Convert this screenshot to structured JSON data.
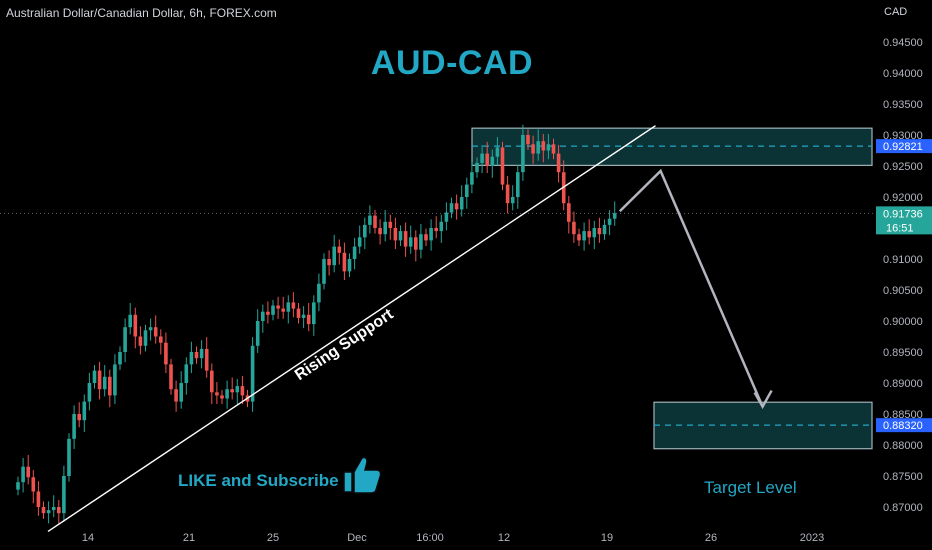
{
  "header": {
    "title": "Australian Dollar/Canadian Dollar, 6h, FOREX.com",
    "currency": "CAD"
  },
  "overlay": {
    "main_title": "AUD-CAD",
    "trendline_label": "Rising Support",
    "like_text": "LIKE and Subscribe",
    "target_text": "Target Level",
    "thumb_icon": "thumbs-up-icon"
  },
  "colors": {
    "up": "#26a69a",
    "down": "#ef5350",
    "accent": "#22a7c4",
    "zone_fill": "#0d3b3e",
    "zone_border": "#9fb3b8",
    "price_tag": "#26a69a",
    "zone_tag": "#2962ff"
  },
  "chart_data": {
    "type": "candlestick",
    "yaxis": {
      "side": "right",
      "range": [
        0.8665,
        0.948
      ],
      "ticks": [
        "0.94500",
        "0.94000",
        "0.93500",
        "0.93000",
        "0.92500",
        "0.92000",
        "0.91500",
        "0.91000",
        "0.90500",
        "0.90000",
        "0.89500",
        "0.89000",
        "0.88500",
        "0.88000",
        "0.87500",
        "0.87000"
      ]
    },
    "xaxis": {
      "ticks": [
        "14",
        "21",
        "25",
        "Dec",
        "16:00",
        "12",
        "19",
        "26",
        "2023"
      ]
    },
    "price_labels": {
      "current": "0.91736",
      "countdown": "16:51",
      "upper_zone": "0.92821",
      "lower_zone": "0.88320"
    },
    "zones": [
      {
        "name": "resistance-zone",
        "top": 0.9311,
        "bottom": 0.9251,
        "level": 0.92821
      },
      {
        "name": "target-zone",
        "top": 0.8869,
        "bottom": 0.8794,
        "level": 0.8832
      }
    ],
    "trendline": {
      "label": "Rising Support",
      "from": [
        0,
        0.868
      ],
      "to": [
        125,
        0.9315
      ]
    },
    "projection": [
      [
        118,
        0.9177
      ],
      [
        126,
        0.9242
      ],
      [
        146,
        0.8862
      ]
    ],
    "current_price": 0.91736,
    "closes": [
      0.874,
      0.8765,
      0.8748,
      0.8725,
      0.87,
      0.869,
      0.8695,
      0.87,
      0.869,
      0.875,
      0.881,
      0.885,
      0.884,
      0.887,
      0.89,
      0.892,
      0.889,
      0.891,
      0.888,
      0.893,
      0.895,
      0.899,
      0.901,
      0.8975,
      0.896,
      0.8985,
      0.899,
      0.8975,
      0.8965,
      0.893,
      0.889,
      0.887,
      0.89,
      0.893,
      0.895,
      0.894,
      0.8955,
      0.892,
      0.8885,
      0.888,
      0.8875,
      0.889,
      0.8885,
      0.8895,
      0.888,
      0.887,
      0.896,
      0.9,
      0.9015,
      0.901,
      0.9025,
      0.902,
      0.9015,
      0.903,
      0.902,
      0.9005,
      0.901,
      0.8995,
      0.903,
      0.906,
      0.91,
      0.909,
      0.912,
      0.911,
      0.908,
      0.91,
      0.912,
      0.9135,
      0.9155,
      0.917,
      0.915,
      0.914,
      0.916,
      0.915,
      0.913,
      0.9145,
      0.912,
      0.9135,
      0.9115,
      0.914,
      0.913,
      0.915,
      0.9145,
      0.916,
      0.9175,
      0.919,
      0.918,
      0.92,
      0.922,
      0.924,
      0.9255,
      0.927,
      0.925,
      0.9265,
      0.928,
      0.922,
      0.919,
      0.92,
      0.924,
      0.93,
      0.9285,
      0.927,
      0.929,
      0.9275,
      0.9285,
      0.927,
      0.924,
      0.919,
      0.916,
      0.914,
      0.913,
      0.9145,
      0.9135,
      0.915,
      0.914,
      0.9155,
      0.9165,
      0.9174
    ]
  }
}
